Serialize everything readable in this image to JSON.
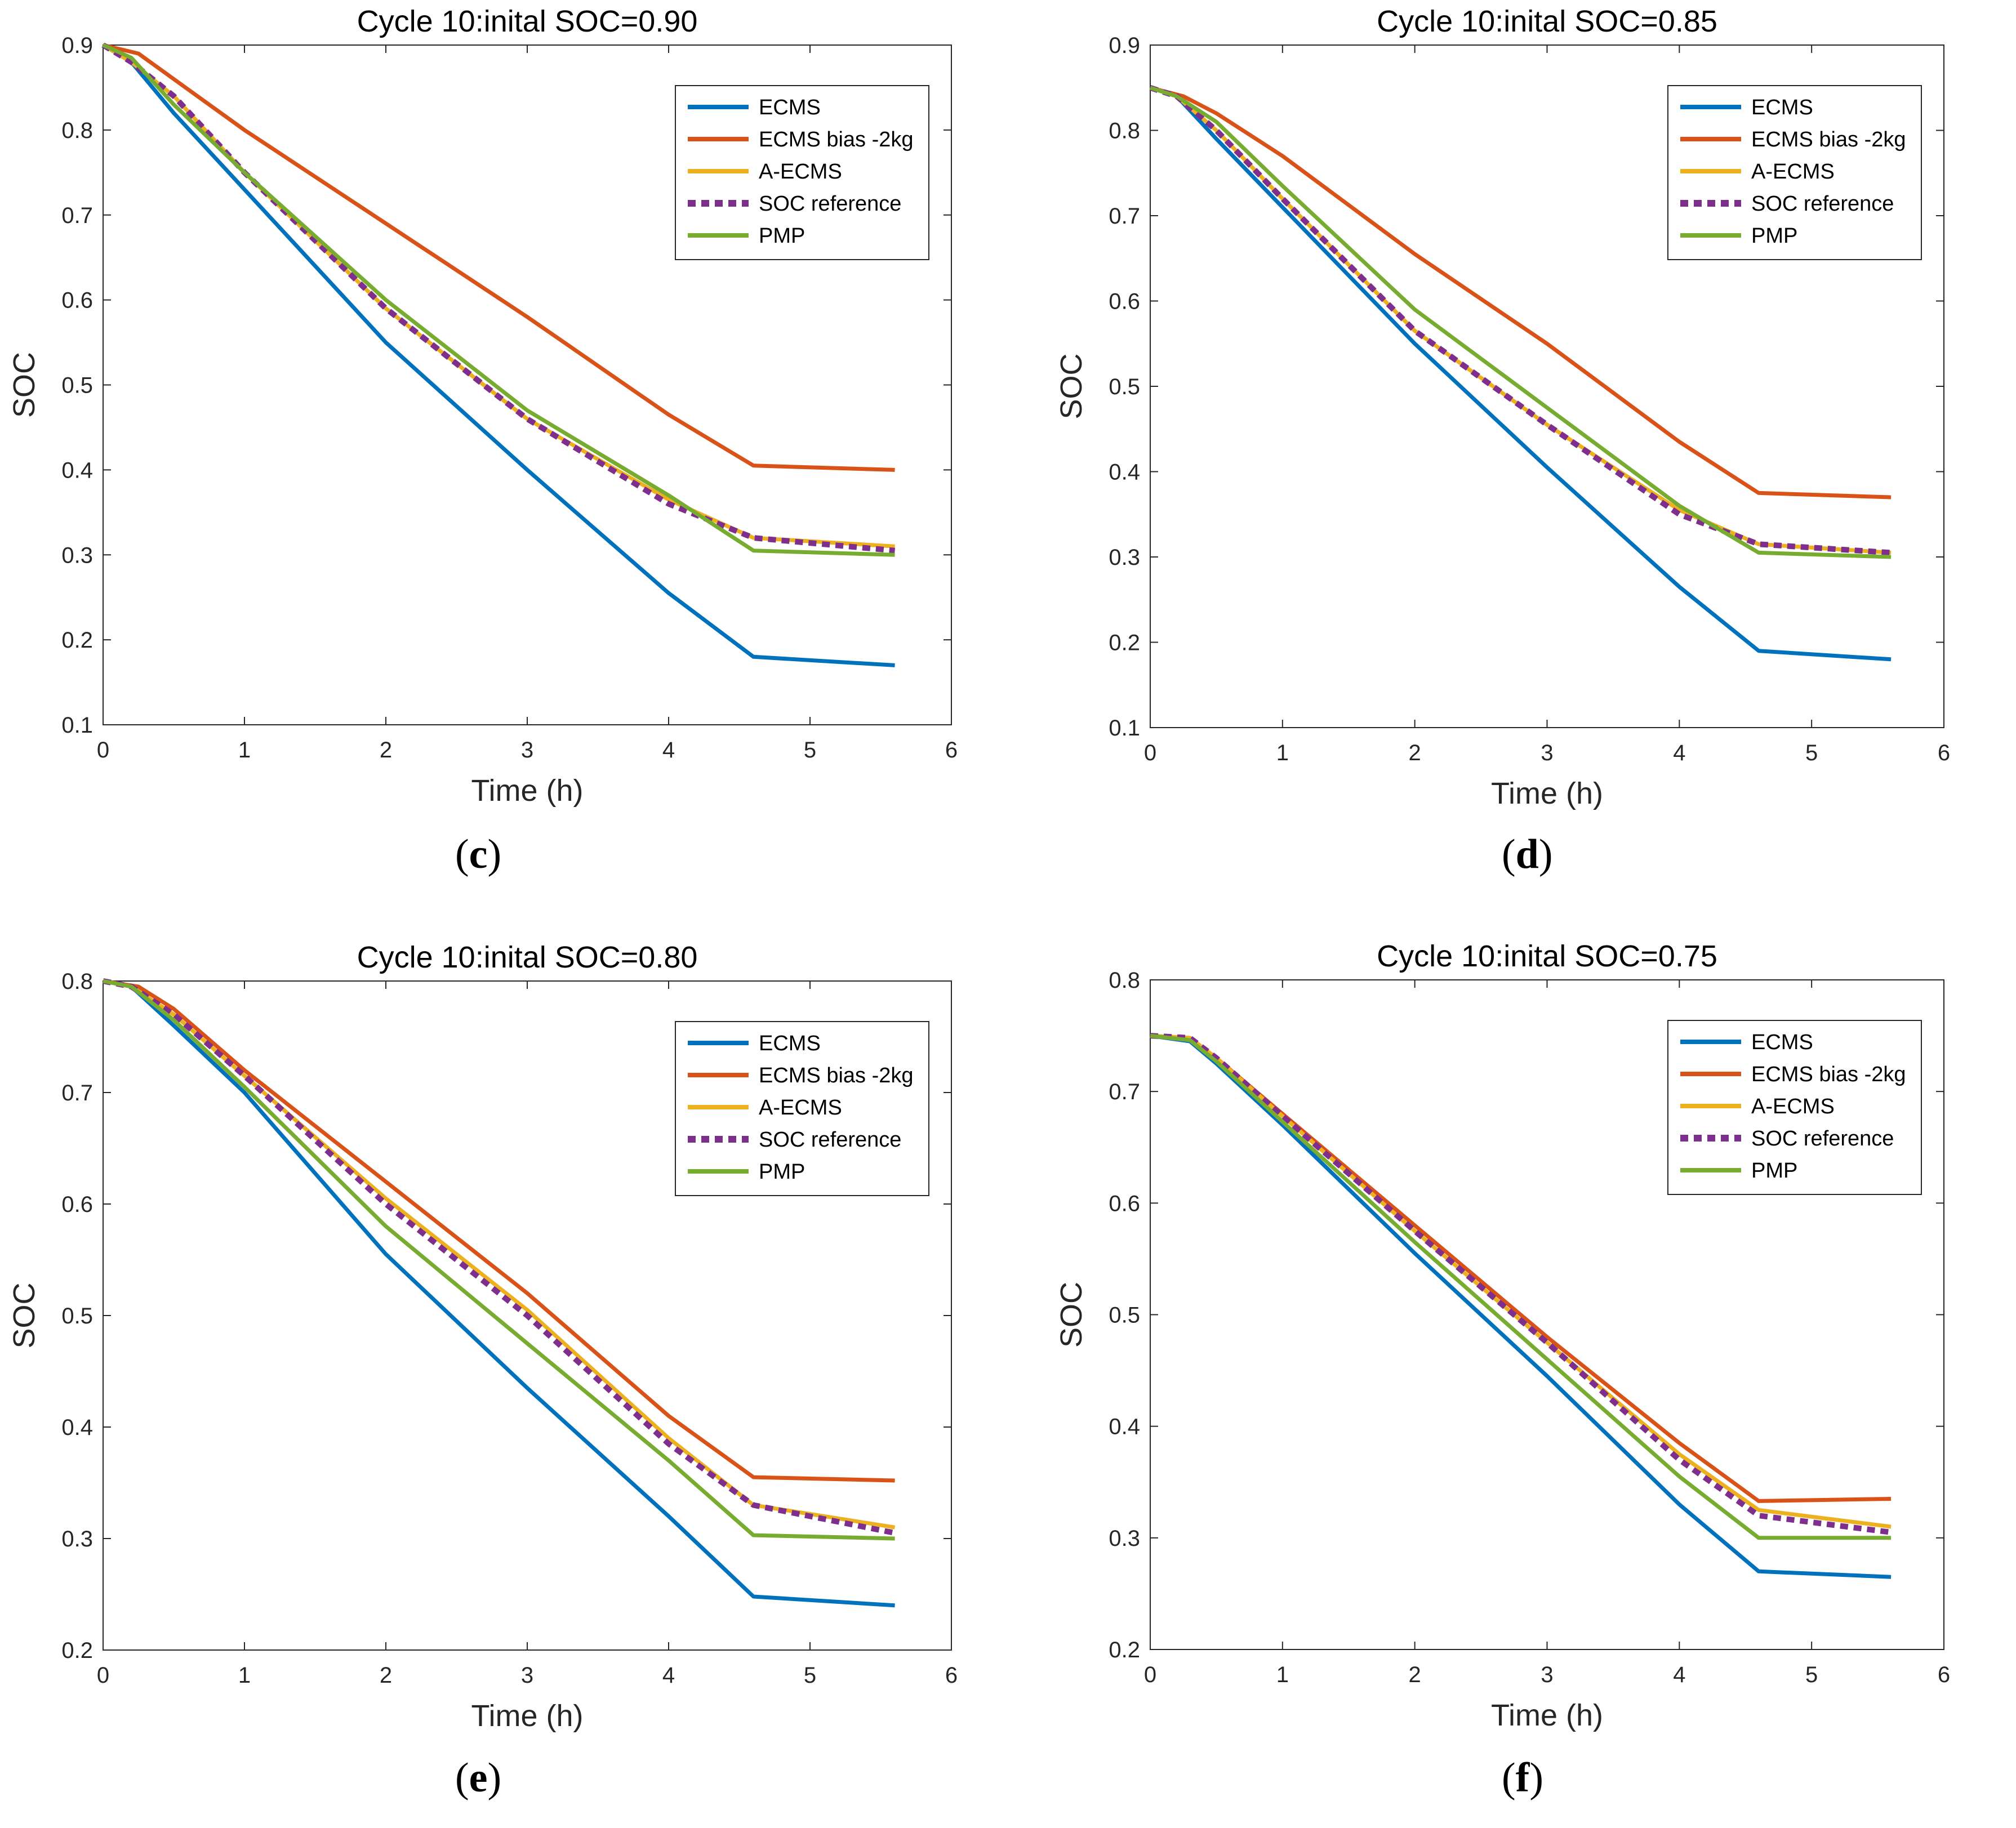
{
  "figure": {
    "panels": [
      {
        "id": "c",
        "caption_open": "(",
        "caption_letter": "c",
        "caption_close": ")"
      },
      {
        "id": "d",
        "caption_open": "(",
        "caption_letter": "d",
        "caption_close": ")"
      },
      {
        "id": "e",
        "caption_open": "(",
        "caption_letter": "e",
        "caption_close": ")"
      },
      {
        "id": "f",
        "caption_open": "(",
        "caption_letter": "f",
        "caption_close": ")"
      }
    ]
  },
  "chart_data": [
    {
      "type": "line",
      "title": "Cycle 10:inital SOC=0.90",
      "xlabel": "Time (h)",
      "ylabel": "SOC",
      "xlim": [
        0,
        6
      ],
      "ylim": [
        0.1,
        0.9
      ],
      "xticks": [
        0,
        1,
        2,
        3,
        4,
        5,
        6
      ],
      "yticks": [
        0.1,
        0.2,
        0.3,
        0.4,
        0.5,
        0.6,
        0.7,
        0.8,
        0.9
      ],
      "legend_position": "top-right",
      "series": [
        {
          "name": "ECMS",
          "color": "#0072BD",
          "style": "solid",
          "x": [
            0,
            0.2,
            0.5,
            1,
            2,
            3,
            4,
            4.6,
            5.6
          ],
          "y": [
            0.9,
            0.88,
            0.82,
            0.73,
            0.55,
            0.4,
            0.255,
            0.18,
            0.17
          ]
        },
        {
          "name": "ECMS bias -2kg",
          "color": "#D95319",
          "style": "solid",
          "x": [
            0,
            0.25,
            0.5,
            1,
            2,
            3,
            4,
            4.6,
            5.6
          ],
          "y": [
            0.9,
            0.89,
            0.86,
            0.8,
            0.69,
            0.58,
            0.465,
            0.405,
            0.4
          ]
        },
        {
          "name": "A-ECMS",
          "color": "#EDB120",
          "style": "solid",
          "x": [
            0,
            0.2,
            0.5,
            1,
            2,
            3,
            4,
            4.6,
            5.6
          ],
          "y": [
            0.9,
            0.88,
            0.84,
            0.75,
            0.59,
            0.46,
            0.365,
            0.32,
            0.31
          ]
        },
        {
          "name": "SOC reference",
          "color": "#7E2F8E",
          "style": "dotted",
          "x": [
            0,
            0.2,
            0.5,
            1,
            2,
            3,
            4,
            4.6,
            5.6
          ],
          "y": [
            0.9,
            0.88,
            0.84,
            0.75,
            0.59,
            0.46,
            0.36,
            0.32,
            0.305
          ]
        },
        {
          "name": "PMP",
          "color": "#77AC30",
          "style": "solid",
          "x": [
            0,
            0.2,
            0.5,
            1,
            2,
            3,
            4,
            4.6,
            5.6
          ],
          "y": [
            0.9,
            0.885,
            0.83,
            0.75,
            0.6,
            0.47,
            0.37,
            0.305,
            0.3
          ]
        }
      ]
    },
    {
      "type": "line",
      "title": "Cycle 10:inital SOC=0.85",
      "xlabel": "Time (h)",
      "ylabel": "SOC",
      "xlim": [
        0,
        6
      ],
      "ylim": [
        0.1,
        0.9
      ],
      "xticks": [
        0,
        1,
        2,
        3,
        4,
        5,
        6
      ],
      "yticks": [
        0.1,
        0.2,
        0.3,
        0.4,
        0.5,
        0.6,
        0.7,
        0.8,
        0.9
      ],
      "legend_position": "top-right",
      "series": [
        {
          "name": "ECMS",
          "color": "#0072BD",
          "style": "solid",
          "x": [
            0,
            0.2,
            0.5,
            1,
            2,
            3,
            4,
            4.6,
            5.6
          ],
          "y": [
            0.85,
            0.84,
            0.79,
            0.71,
            0.55,
            0.405,
            0.265,
            0.19,
            0.18
          ]
        },
        {
          "name": "ECMS bias -2kg",
          "color": "#D95319",
          "style": "solid",
          "x": [
            0,
            0.25,
            0.5,
            1,
            2,
            3,
            4,
            4.6,
            5.6
          ],
          "y": [
            0.85,
            0.84,
            0.82,
            0.77,
            0.655,
            0.55,
            0.435,
            0.375,
            0.37
          ]
        },
        {
          "name": "A-ECMS",
          "color": "#EDB120",
          "style": "solid",
          "x": [
            0,
            0.2,
            0.5,
            1,
            2,
            3,
            4,
            4.6,
            5.6
          ],
          "y": [
            0.85,
            0.84,
            0.8,
            0.72,
            0.565,
            0.455,
            0.355,
            0.315,
            0.305
          ]
        },
        {
          "name": "SOC reference",
          "color": "#7E2F8E",
          "style": "dotted",
          "x": [
            0,
            0.2,
            0.5,
            1,
            2,
            3,
            4,
            4.6,
            5.6
          ],
          "y": [
            0.85,
            0.84,
            0.8,
            0.72,
            0.565,
            0.455,
            0.35,
            0.315,
            0.305
          ]
        },
        {
          "name": "PMP",
          "color": "#77AC30",
          "style": "solid",
          "x": [
            0,
            0.2,
            0.5,
            1,
            2,
            3,
            4,
            4.6,
            5.6
          ],
          "y": [
            0.85,
            0.84,
            0.81,
            0.735,
            0.59,
            0.475,
            0.36,
            0.305,
            0.3
          ]
        }
      ]
    },
    {
      "type": "line",
      "title": "Cycle 10:inital SOC=0.80",
      "xlabel": "Time (h)",
      "ylabel": "SOC",
      "xlim": [
        0,
        6
      ],
      "ylim": [
        0.2,
        0.8
      ],
      "xticks": [
        0,
        1,
        2,
        3,
        4,
        5,
        6
      ],
      "yticks": [
        0.2,
        0.3,
        0.4,
        0.5,
        0.6,
        0.7,
        0.8
      ],
      "legend_position": "top-right",
      "series": [
        {
          "name": "ECMS",
          "color": "#0072BD",
          "style": "solid",
          "x": [
            0,
            0.2,
            0.5,
            1,
            2,
            3,
            4,
            4.6,
            5.6
          ],
          "y": [
            0.8,
            0.795,
            0.76,
            0.7,
            0.555,
            0.435,
            0.32,
            0.248,
            0.24
          ]
        },
        {
          "name": "ECMS bias -2kg",
          "color": "#D95319",
          "style": "solid",
          "x": [
            0,
            0.25,
            0.5,
            1,
            2,
            3,
            4,
            4.6,
            5.6
          ],
          "y": [
            0.8,
            0.795,
            0.775,
            0.72,
            0.62,
            0.52,
            0.41,
            0.355,
            0.352
          ]
        },
        {
          "name": "A-ECMS",
          "color": "#EDB120",
          "style": "solid",
          "x": [
            0,
            0.2,
            0.5,
            1,
            2,
            3,
            4,
            4.6,
            5.6
          ],
          "y": [
            0.8,
            0.795,
            0.77,
            0.715,
            0.605,
            0.505,
            0.39,
            0.33,
            0.31
          ]
        },
        {
          "name": "SOC reference",
          "color": "#7E2F8E",
          "style": "dotted",
          "x": [
            0,
            0.2,
            0.5,
            1,
            2,
            3,
            4,
            4.6,
            5.6
          ],
          "y": [
            0.8,
            0.795,
            0.77,
            0.715,
            0.6,
            0.5,
            0.385,
            0.33,
            0.305
          ]
        },
        {
          "name": "PMP",
          "color": "#77AC30",
          "style": "solid",
          "x": [
            0,
            0.2,
            0.5,
            1,
            2,
            3,
            4,
            4.6,
            5.6
          ],
          "y": [
            0.8,
            0.795,
            0.765,
            0.705,
            0.58,
            0.475,
            0.37,
            0.303,
            0.3
          ]
        }
      ]
    },
    {
      "type": "line",
      "title": "Cycle 10:inital SOC=0.75",
      "xlabel": "Time (h)",
      "ylabel": "SOC",
      "xlim": [
        0,
        6
      ],
      "ylim": [
        0.2,
        0.8
      ],
      "xticks": [
        0,
        1,
        2,
        3,
        4,
        5,
        6
      ],
      "yticks": [
        0.2,
        0.3,
        0.4,
        0.5,
        0.6,
        0.7,
        0.8
      ],
      "legend_position": "top-right",
      "series": [
        {
          "name": "ECMS",
          "color": "#0072BD",
          "style": "solid",
          "x": [
            0,
            0.3,
            0.5,
            1,
            2,
            3,
            4,
            4.6,
            5.6
          ],
          "y": [
            0.75,
            0.745,
            0.725,
            0.67,
            0.555,
            0.445,
            0.33,
            0.27,
            0.265
          ]
        },
        {
          "name": "ECMS bias -2kg",
          "color": "#D95319",
          "style": "solid",
          "x": [
            0,
            0.3,
            0.5,
            1,
            2,
            3,
            4,
            4.6,
            5.6
          ],
          "y": [
            0.75,
            0.748,
            0.73,
            0.68,
            0.58,
            0.48,
            0.385,
            0.333,
            0.335
          ]
        },
        {
          "name": "A-ECMS",
          "color": "#EDB120",
          "style": "solid",
          "x": [
            0,
            0.3,
            0.5,
            1,
            2,
            3,
            4,
            4.6,
            5.6
          ],
          "y": [
            0.75,
            0.748,
            0.73,
            0.678,
            0.575,
            0.475,
            0.375,
            0.325,
            0.31
          ]
        },
        {
          "name": "SOC reference",
          "color": "#7E2F8E",
          "style": "dotted",
          "x": [
            0,
            0.3,
            0.5,
            1,
            2,
            3,
            4,
            4.6,
            5.6
          ],
          "y": [
            0.75,
            0.748,
            0.73,
            0.678,
            0.575,
            0.475,
            0.37,
            0.32,
            0.305
          ]
        },
        {
          "name": "PMP",
          "color": "#77AC30",
          "style": "solid",
          "x": [
            0,
            0.3,
            0.5,
            1,
            2,
            3,
            4,
            4.6,
            5.6
          ],
          "y": [
            0.75,
            0.746,
            0.727,
            0.673,
            0.565,
            0.46,
            0.355,
            0.3,
            0.3
          ]
        }
      ]
    }
  ]
}
